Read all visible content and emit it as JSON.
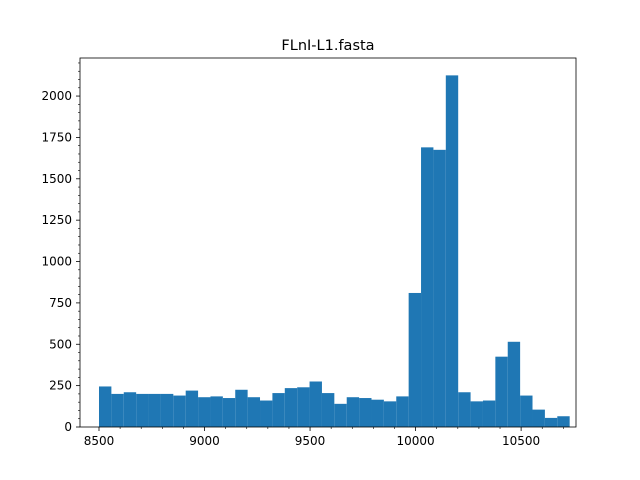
{
  "chart_data": {
    "type": "bar",
    "title": "FLnI-L1.fasta",
    "xlabel": "",
    "ylabel": "",
    "bar_color": "#1f77b4",
    "xlim": [
      8410,
      10760
    ],
    "ylim": [
      0,
      2230
    ],
    "x_ticks": [
      8500,
      9000,
      9500,
      10000,
      10500
    ],
    "y_ticks": [
      0,
      250,
      500,
      750,
      1000,
      1250,
      1500,
      1750,
      2000
    ],
    "bin_edges": [
      8500,
      8558.68,
      8617.37,
      8676.05,
      8734.74,
      8793.42,
      8852.11,
      8910.79,
      8969.47,
      9028.16,
      9086.84,
      9145.53,
      9204.21,
      9262.89,
      9321.58,
      9380.26,
      9438.95,
      9497.63,
      9556.32,
      9615,
      9673.68,
      9732.37,
      9791.05,
      9849.74,
      9908.42,
      9967.11,
      10025.79,
      10084.47,
      10143.16,
      10201.84,
      10260.53,
      10319.21,
      10377.89,
      10436.58,
      10495.26,
      10553.95,
      10612.63,
      10671.32,
      10730
    ],
    "values": [
      245,
      200,
      210,
      200,
      200,
      200,
      190,
      220,
      180,
      185,
      175,
      225,
      180,
      160,
      205,
      235,
      240,
      275,
      205,
      140,
      180,
      175,
      165,
      155,
      185,
      810,
      1690,
      1675,
      2125,
      210,
      155,
      160,
      425,
      515,
      190,
      105,
      55,
      65
    ]
  }
}
